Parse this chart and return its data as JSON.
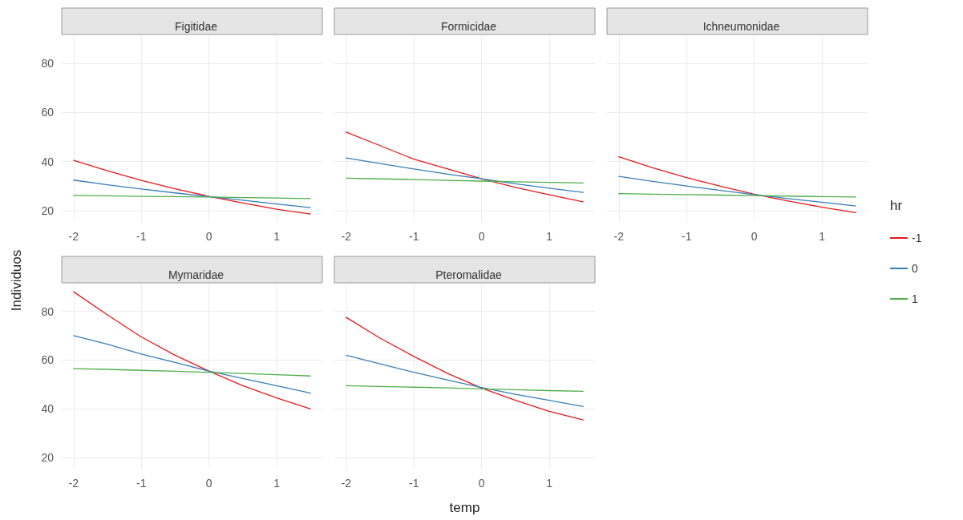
{
  "chart_data": [
    {
      "type": "line",
      "title": "Figitidae",
      "x": [
        -2,
        -1.5,
        -1,
        -0.5,
        0,
        0.5,
        1,
        1.5
      ],
      "xlim": [
        -2.175,
        1.675
      ],
      "xticks": [
        -2,
        -1,
        0,
        1
      ],
      "ylim": [
        15.5,
        91
      ],
      "yticks": [
        20,
        40,
        60,
        80
      ],
      "grid": true,
      "marker": "none",
      "line_style": "solid",
      "series": [
        {
          "name": "-1",
          "color": "#e41a1c",
          "values": [
            40.5,
            36.3,
            32.4,
            29.0,
            25.9,
            23.2,
            20.7,
            18.7
          ]
        },
        {
          "name": "0",
          "color": "#377eb8",
          "values": [
            32.5,
            30.6,
            28.9,
            27.3,
            25.8,
            24.3,
            22.8,
            21.3
          ]
        },
        {
          "name": "1",
          "color": "#4daf4a",
          "values": [
            26.3,
            26.1,
            25.9,
            25.8,
            25.6,
            25.4,
            25.2,
            25.0
          ]
        }
      ]
    },
    {
      "type": "line",
      "title": "Formicidae",
      "x": [
        -2,
        -1.5,
        -1,
        -0.5,
        0,
        0.5,
        1,
        1.5
      ],
      "xlim": [
        -2.175,
        1.675
      ],
      "xticks": [
        -2,
        -1,
        0,
        1
      ],
      "ylim": [
        15.5,
        91
      ],
      "yticks": [
        20,
        40,
        60,
        80
      ],
      "grid": true,
      "marker": "none",
      "line_style": "solid",
      "tick_labels": "x",
      "series": [
        {
          "name": "-1",
          "color": "#e41a1c",
          "values": [
            52,
            46.5,
            41,
            37,
            33,
            29.5,
            26.5,
            23.7
          ]
        },
        {
          "name": "0",
          "color": "#377eb8",
          "values": [
            41.5,
            39.2,
            37,
            34.9,
            33,
            31,
            29.2,
            27.5
          ]
        },
        {
          "name": "1",
          "color": "#4daf4a",
          "values": [
            33.3,
            33,
            32.7,
            32.4,
            32.1,
            31.8,
            31.6,
            31.3
          ]
        }
      ]
    },
    {
      "type": "line",
      "title": "Ichneumonidae",
      "x": [
        -2,
        -1.5,
        -1,
        -0.5,
        0,
        0.5,
        1,
        1.5
      ],
      "xlim": [
        -2.175,
        1.675
      ],
      "xticks": [
        -2,
        -1,
        0,
        1
      ],
      "ylim": [
        15.5,
        91
      ],
      "yticks": [
        20,
        40,
        60,
        80
      ],
      "grid": true,
      "marker": "none",
      "line_style": "solid",
      "tick_labels": "x",
      "legend": "right",
      "legend_title": "hr",
      "series": [
        {
          "name": "-1",
          "color": "#e41a1c",
          "values": [
            42,
            37.5,
            33.5,
            30,
            26.8,
            24,
            21.5,
            19.3
          ]
        },
        {
          "name": "0",
          "color": "#377eb8",
          "values": [
            34,
            32,
            30.1,
            28.3,
            26.6,
            25,
            23.5,
            22
          ]
        },
        {
          "name": "1",
          "color": "#4daf4a",
          "values": [
            27,
            26.8,
            26.6,
            26.4,
            26.2,
            26,
            25.8,
            25.6
          ]
        }
      ]
    },
    {
      "type": "line",
      "title": "Mymaridae",
      "ylabel": "Individuos",
      "x": [
        -2,
        -1.5,
        -1,
        -0.5,
        0,
        0.5,
        1,
        1.5
      ],
      "xlim": [
        -2.175,
        1.675
      ],
      "xticks": [
        -2,
        -1,
        0,
        1
      ],
      "ylim": [
        15.5,
        91
      ],
      "yticks": [
        20,
        40,
        60,
        80
      ],
      "grid": true,
      "marker": "none",
      "line_style": "solid",
      "series": [
        {
          "name": "-1",
          "color": "#e41a1c",
          "values": [
            88,
            78.5,
            69.5,
            62,
            55.5,
            49.5,
            44.5,
            40
          ]
        },
        {
          "name": "0",
          "color": "#377eb8",
          "values": [
            70,
            66.5,
            62.5,
            59,
            55.5,
            52.5,
            49.5,
            46.5
          ]
        },
        {
          "name": "1",
          "color": "#4daf4a",
          "values": [
            56.5,
            56.2,
            55.8,
            55.4,
            55,
            54.5,
            54,
            53.5
          ]
        }
      ]
    },
    {
      "type": "line",
      "title": "Pteromalidae",
      "xlabel": "temp",
      "x": [
        -2,
        -1.5,
        -1,
        -0.5,
        0,
        0.5,
        1,
        1.5
      ],
      "xlim": [
        -2.175,
        1.675
      ],
      "xticks": [
        -2,
        -1,
        0,
        1
      ],
      "ylim": [
        15.5,
        91
      ],
      "yticks": [
        20,
        40,
        60,
        80
      ],
      "grid": true,
      "marker": "none",
      "line_style": "solid",
      "tick_labels": "x",
      "series": [
        {
          "name": "-1",
          "color": "#e41a1c",
          "values": [
            77.5,
            69,
            61.5,
            54.5,
            48.5,
            43.5,
            39,
            35.5
          ]
        },
        {
          "name": "0",
          "color": "#377eb8",
          "values": [
            62,
            58.5,
            55,
            51.8,
            48.8,
            46,
            43.5,
            41
          ]
        },
        {
          "name": "1",
          "color": "#4daf4a",
          "values": [
            49.5,
            49.2,
            48.9,
            48.6,
            48.2,
            47.9,
            47.5,
            47.2
          ]
        }
      ]
    }
  ]
}
